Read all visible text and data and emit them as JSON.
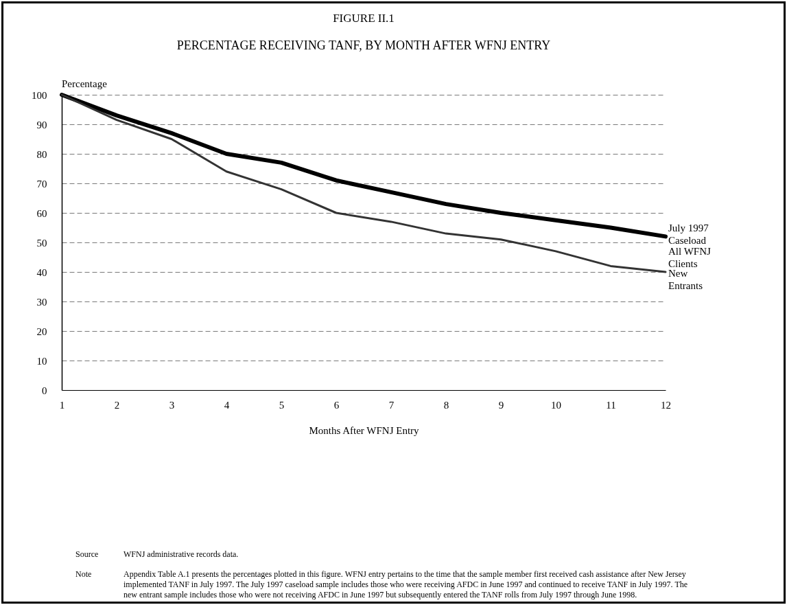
{
  "chart_data": {
    "type": "line",
    "title": "FIGURE II.1",
    "subtitle": "PERCENTAGE RECEIVING TANF, BY MONTH AFTER WFNJ ENTRY",
    "xlabel": "Months After WFNJ Entry",
    "ylabel": "Percentage",
    "x": [
      1,
      2,
      3,
      4,
      5,
      6,
      7,
      8,
      9,
      10,
      11,
      12
    ],
    "series": [
      {
        "name": "July 1997 Caseload",
        "color": "#000000",
        "values": [
          100,
          93,
          87,
          80,
          77,
          71,
          67,
          63,
          60,
          57.5,
          55,
          52
        ]
      },
      {
        "name": "New Entrants",
        "color": "#333333",
        "values": [
          100,
          91.5,
          85,
          74,
          68,
          60,
          57,
          53,
          51,
          47,
          42,
          40
        ]
      }
    ],
    "xlim": [
      1,
      12
    ],
    "xticks": [
      1,
      2,
      3,
      4,
      5,
      6,
      7,
      8,
      9,
      10,
      11,
      12
    ],
    "ylim": [
      0,
      100
    ],
    "yticks": [
      0,
      10,
      20,
      30,
      40,
      50,
      60,
      70,
      80,
      90,
      100
    ],
    "grid": "y",
    "legend": false,
    "marker": "none",
    "line_style": "solid",
    "annotations": [
      "All WFNJ Clients",
      "Source",
      "WFNJ administrative records data.",
      "Note",
      "Appendix Table A.1 presents the percentages plotted in this figure.  WFNJ entry pertains to the time that the sample member first received cash assistance after New Jersey implemented TANF in July 1997.  The July 1997 caseload sample includes those who were receiving AFDC in June 1997 and continued to receive TANF in July 1997.  The new entrant sample includes those who were not receiving AFDC in June 1997 but subsequently entered the TANF rolls from July 1997 through June 1998."
    ]
  }
}
